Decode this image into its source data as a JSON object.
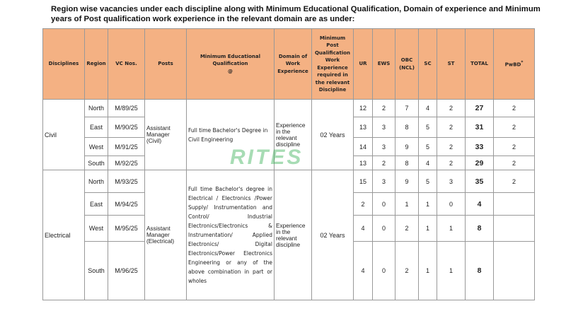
{
  "intro": "Region wise vacancies under each discipline along with Minimum Educational Qualification, Domain of experience and Minimum years of Post qualification work experience in the relevant domain are as under:",
  "headers": [
    "Disciplines",
    "Region",
    "VC Nos.",
    "Posts",
    "Minimum Educational Qualification\n@",
    "Domain of Work Experience",
    "Minimum Post Qualification Work Experience required in the relevant Discipline",
    "UR",
    "EWS",
    "OBC (NCL)",
    "SC",
    "ST",
    "TOTAL",
    "PwBD"
  ],
  "pwbd_sup": "*",
  "watermark": "RITES",
  "groups": [
    {
      "discipline": "Civil",
      "post": "Assistant Manager (Civil)",
      "qualification": "Full time Bachelor's Degree in Civil Engineering",
      "domain": "Experience in the relevant discipline",
      "experience": "02 Years",
      "rows": [
        {
          "region": "North",
          "vc": "M/89/25",
          "ur": "12",
          "ews": "2",
          "obc": "7",
          "sc": "4",
          "st": "2",
          "total": "27",
          "pwbd": "2"
        },
        {
          "region": "East",
          "vc": "M/90/25",
          "ur": "13",
          "ews": "3",
          "obc": "8",
          "sc": "5",
          "st": "2",
          "total": "31",
          "pwbd": "2"
        },
        {
          "region": "West",
          "vc": "M/91/25",
          "ur": "14",
          "ews": "3",
          "obc": "9",
          "sc": "5",
          "st": "2",
          "total": "33",
          "pwbd": "2"
        },
        {
          "region": "South",
          "vc": "M/92/25",
          "ur": "13",
          "ews": "2",
          "obc": "8",
          "sc": "4",
          "st": "2",
          "total": "29",
          "pwbd": "2"
        }
      ]
    },
    {
      "discipline": "Electrical",
      "post": "Assistant Manager (Electrical)",
      "qualification": "Full time Bachelor's degree in Electrical / Electronics /Power Supply/ Instrumentation and Control/ Industrial Electronics/Electronics & Instrumentation/ Applied Electronics/ Digital Electronics/Power Electronics Engineering or any of the above combination in part or wholes",
      "domain": "Experience in the relevant discipline",
      "experience": "02 Years",
      "rows": [
        {
          "region": "North",
          "vc": "M/93/25",
          "ur": "15",
          "ews": "3",
          "obc": "9",
          "sc": "5",
          "st": "3",
          "total": "35",
          "pwbd": "2"
        },
        {
          "region": "East",
          "vc": "M/94/25",
          "ur": "2",
          "ews": "0",
          "obc": "1",
          "sc": "1",
          "st": "0",
          "total": "4",
          "pwbd": ""
        },
        {
          "region": "West",
          "vc": "M/95/25",
          "ur": "4",
          "ews": "0",
          "obc": "2",
          "sc": "1",
          "st": "1",
          "total": "8",
          "pwbd": ""
        },
        {
          "region": "South",
          "vc": "M/96/25",
          "ur": "4",
          "ews": "0",
          "obc": "2",
          "sc": "1",
          "st": "1",
          "total": "8",
          "pwbd": ""
        }
      ]
    }
  ]
}
